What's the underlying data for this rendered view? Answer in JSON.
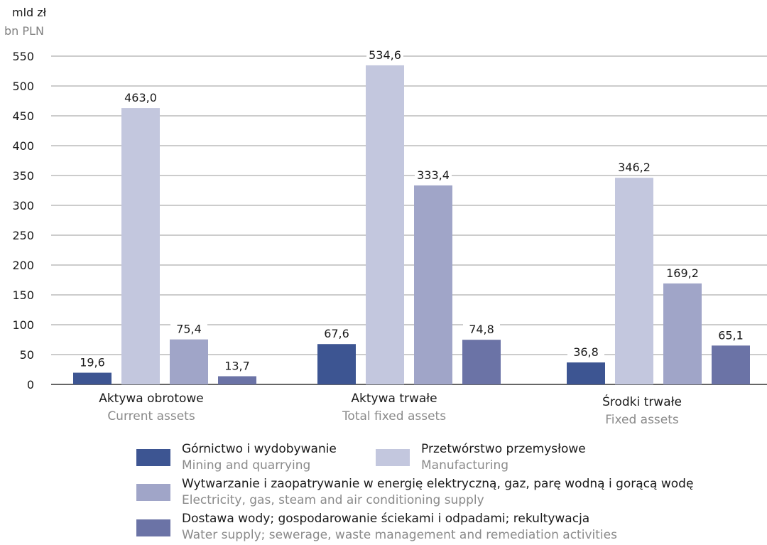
{
  "unit": {
    "pl": "mld zł",
    "en": "bn PLN"
  },
  "colors": {
    "mining": "#3d5592",
    "manufacturing": "#c3c7de",
    "electricity": "#a0a5c8",
    "water": "#6b73a6",
    "grid": "#9a9a9a",
    "axis": "#333333"
  },
  "chart_data": {
    "type": "bar",
    "title": "",
    "ylabel": "mld zł / bn PLN",
    "ylim": [
      0,
      550
    ],
    "yticks": [
      0,
      50,
      100,
      150,
      200,
      250,
      300,
      350,
      400,
      450,
      500,
      550
    ],
    "grid": true,
    "legend_position": "bottom",
    "categories": [
      {
        "pl": "Aktywa obrotowe",
        "en": "Current assets"
      },
      {
        "pl": "Aktywa trwałe",
        "en": "Total fixed assets"
      },
      {
        "pl": "Środki trwałe",
        "en": "Fixed assets"
      }
    ],
    "series": [
      {
        "key": "mining",
        "name": "Górnictwo i wydobywanie",
        "name_en": "Mining and quarrying",
        "values": [
          19.6,
          67.6,
          36.8
        ],
        "labels": [
          "19,6",
          "67,6",
          "36,8"
        ]
      },
      {
        "key": "manufacturing",
        "name": "Przetwórstwo przemysłowe",
        "name_en": "Manufacturing",
        "values": [
          463.0,
          534.6,
          346.2
        ],
        "labels": [
          "463,0",
          "534,6",
          "346,2"
        ]
      },
      {
        "key": "electricity",
        "name": "Wytwarzanie i zaopatrywanie w energię elektryczną, gaz, parę wodną i gorącą wodę",
        "name_en": "Electricity, gas, steam and air conditioning supply",
        "values": [
          75.4,
          333.4,
          169.2
        ],
        "labels": [
          "75,4",
          "333,4",
          "169,2"
        ]
      },
      {
        "key": "water",
        "name": "Dostawa wody; gospodarowanie ściekami i odpadami; rekultywacja",
        "name_en": "Water supply; sewerage, waste management and remediation activities",
        "values": [
          13.7,
          74.8,
          65.1
        ],
        "labels": [
          "13,7",
          "74,8",
          "65,1"
        ]
      }
    ]
  }
}
